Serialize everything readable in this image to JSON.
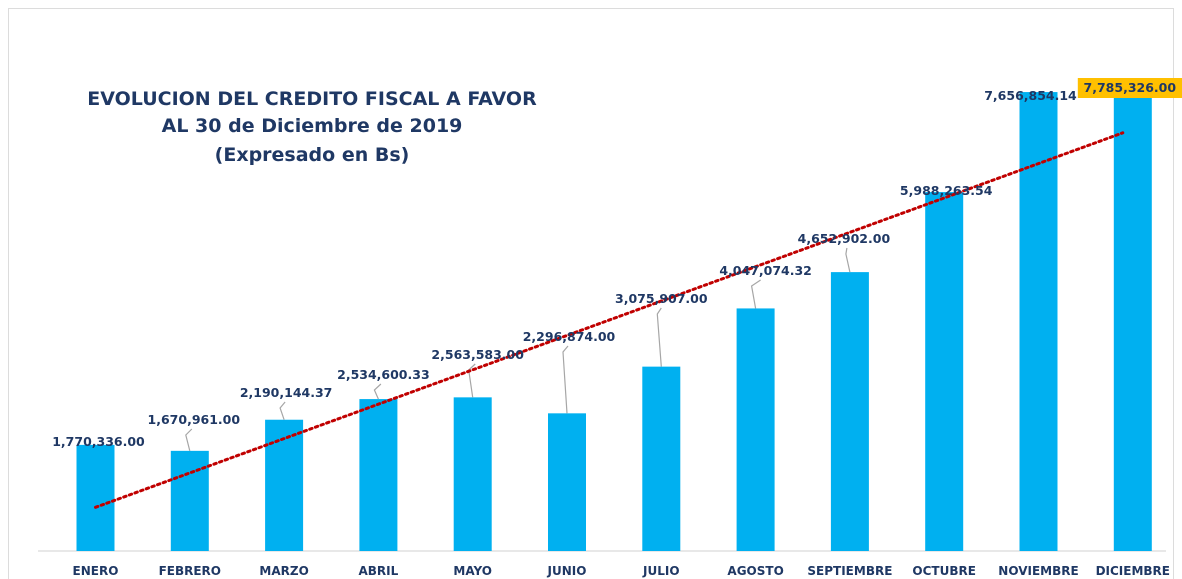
{
  "chart_data": {
    "type": "bar",
    "title_lines": [
      "EVOLUCION DEL CREDITO FISCAL A FAVOR",
      "AL 30 de Diciembre de 2019",
      "(Expresado en Bs)"
    ],
    "categories": [
      "ENERO",
      "FEBRERO",
      "MARZO",
      "ABRIL",
      "MAYO",
      "JUNIO",
      "JULIO",
      "AGOSTO",
      "SEPTIEMBRE",
      "OCTUBRE",
      "NOVIEMBRE",
      "DICIEMBRE"
    ],
    "values": [
      1770336.0,
      1670961.0,
      2190144.37,
      2534600.33,
      2563583.0,
      2296874.0,
      3075907.0,
      4047074.32,
      4652902.0,
      5988263.54,
      7656854.14,
      7785326.0
    ],
    "value_labels": [
      "1,770,336.00",
      "1,670,961.00",
      "2,190,144.37",
      "2,534,600.33",
      "2,563,583.00",
      "2,296,874.00",
      "3,075,907.00",
      "4,047,074.32",
      "4,652,902.00",
      "5,988,263.54",
      "7,656,854.14",
      "7,785,326.00"
    ],
    "highlighted_label_index": 11,
    "trendline": {
      "type": "linear",
      "style": "dotted"
    },
    "ylim": [
      0,
      8000000
    ],
    "grid": false,
    "legend": "none",
    "colors": {
      "bar": "#00b0f0",
      "trendline": "#c00000",
      "text": "#1f3864",
      "highlight": "#ffc000",
      "leader": "#a6a6a6"
    }
  }
}
